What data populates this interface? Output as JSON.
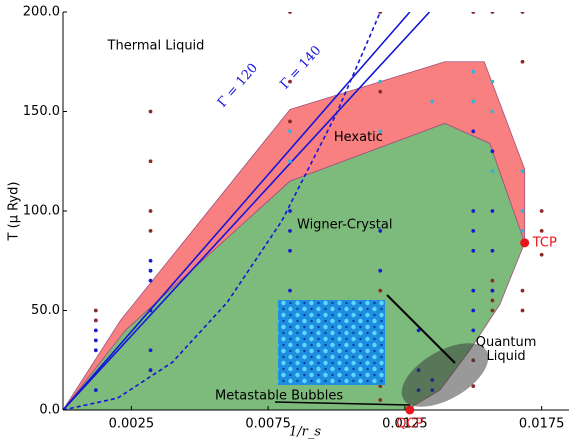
{
  "chart_data": {
    "type": "phase-diagram",
    "xlabel": "1/r_s",
    "ylabel": "T (μ Ryd)",
    "xlim": [
      0,
      0.0185
    ],
    "ylim": [
      0,
      200
    ],
    "xticks": [
      0.0025,
      0.0075,
      0.0125,
      0.0175
    ],
    "yticks": [
      {
        "value": 0,
        "label": "0.0"
      },
      {
        "value": 50,
        "label": "50.0"
      },
      {
        "value": 100,
        "label": "100.0"
      },
      {
        "value": 150,
        "label": "150.0"
      },
      {
        "value": 200,
        "label": "200.0"
      }
    ],
    "series": [
      {
        "name": "Hexatic",
        "kind": "region",
        "color": "#f98080",
        "label_at": [
          0.0108,
          137
        ],
        "x": [
          0,
          0.0021,
          0.0083,
          0.01396,
          0.0154,
          0.01688,
          0.01688,
          0.0156,
          0.01396,
          0.0083,
          0.00228
        ],
        "values": [
          0,
          45,
          151,
          175,
          175,
          121,
          84,
          134,
          144,
          115,
          40
        ]
      },
      {
        "name": "Wigner-Crystal",
        "kind": "region",
        "color": "#7dbb7d",
        "label_at": [
          0.0103,
          93
        ],
        "x": [
          0,
          0.00228,
          0.0083,
          0.01396,
          0.0156,
          0.01688,
          0.01597,
          0.01487,
          0.01378,
          0.01286,
          0.01268
        ],
        "values": [
          0,
          40,
          115,
          144,
          134,
          84,
          53,
          30,
          10,
          2.5,
          0
        ]
      },
      {
        "name": "Γ = 120",
        "kind": "line",
        "color": "#1515d8",
        "label_at": [
          0.0064,
          163
        ],
        "x": [
          0,
          0.01268
        ],
        "values": [
          0,
          200
        ]
      },
      {
        "name": "Γ = 140",
        "kind": "line",
        "color": "#1515d8",
        "label_at": [
          0.0087,
          172
        ],
        "x": [
          0,
          0.0134
        ],
        "values": [
          0,
          200
        ]
      },
      {
        "kind": "line",
        "linestyle": "dashed",
        "color": "#1515d8",
        "x": [
          0,
          0.002,
          0.004,
          0.006,
          0.008,
          0.01,
          0.0116
        ],
        "values": [
          0,
          6,
          24,
          54,
          95,
          149,
          200
        ]
      },
      {
        "kind": "scatter",
        "color": "#8b2a2a",
        "x": [
          0.0012,
          0.0012,
          0.0032,
          0.0032,
          0.0032,
          0.0032,
          0.0083,
          0.0083,
          0.0083,
          0.0116,
          0.0116,
          0.0116,
          0.0116,
          0.0116,
          0.015,
          0.015,
          0.015,
          0.0157,
          0.0157,
          0.0157,
          0.0157,
          0.0157,
          0.0168,
          0.0168,
          0.0168,
          0.0168,
          0.0175,
          0.0175,
          0.0175
        ],
        "values": [
          50,
          45,
          150,
          125,
          100,
          90,
          200,
          165,
          145,
          200,
          160,
          60,
          12,
          5,
          200,
          25,
          12,
          200,
          65,
          60,
          55,
          50,
          200,
          175,
          60,
          50,
          100,
          90,
          78
        ]
      },
      {
        "kind": "scatter",
        "color": "#1a1ad0",
        "x": [
          0.0012,
          0.0012,
          0.0012,
          0.0012,
          0.0032,
          0.0032,
          0.0032,
          0.0032,
          0.0032,
          0.0032,
          0.0083,
          0.0083,
          0.0083,
          0.0083,
          0.0116,
          0.0116,
          0.0116,
          0.0116,
          0.013,
          0.013,
          0.013,
          0.0135,
          0.0135,
          0.015,
          0.015,
          0.015,
          0.015,
          0.015,
          0.015,
          0.015,
          0.0157,
          0.0157,
          0.0157,
          0.0157
        ],
        "values": [
          40,
          35,
          30,
          10,
          75,
          70,
          65,
          50,
          30,
          20,
          100,
          90,
          80,
          60,
          90,
          70,
          50,
          40,
          40,
          20,
          10,
          15,
          10,
          140,
          100,
          90,
          80,
          60,
          50,
          40,
          130,
          100,
          80,
          60
        ]
      },
      {
        "kind": "scatter",
        "color": "#2fb4dc",
        "x": [
          0.0083,
          0.0083,
          0.0116,
          0.0116,
          0.0135,
          0.015,
          0.015,
          0.0157,
          0.0157,
          0.0157,
          0.0168,
          0.0168,
          0.0168
        ],
        "values": [
          140,
          125,
          165,
          140,
          155,
          170,
          155,
          165,
          150,
          120,
          120,
          100,
          90
        ]
      },
      {
        "name": "TCP",
        "kind": "point",
        "color": "#e8141e",
        "x": [
          0.01688
        ],
        "values": [
          84
        ]
      },
      {
        "name": "QCP",
        "kind": "point",
        "color": "#e8141e",
        "x": [
          0.01268
        ],
        "values": [
          0
        ]
      }
    ],
    "annotations": [
      {
        "text": "Thermal Liquid",
        "x": 0.0034,
        "y": 183
      },
      {
        "text": "Quantum",
        "x": 0.0162,
        "y": 34
      },
      {
        "text": "Liquid",
        "x": 0.0162,
        "y": 27
      },
      {
        "text": "Metastable Bubbles",
        "x": 0.0079,
        "y": 7
      }
    ]
  }
}
